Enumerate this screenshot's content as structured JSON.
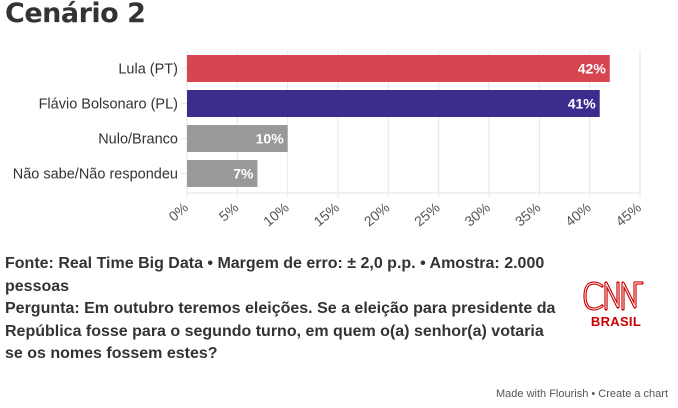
{
  "header": {
    "title": "Cenário 2"
  },
  "chart_data": {
    "type": "bar",
    "orientation": "horizontal",
    "title": "Cenário 2",
    "categories": [
      "Lula (PT)",
      "Flávio Bolsonaro (PL)",
      "Nulo/Branco",
      "Não sabe/Não respondeu"
    ],
    "values": [
      42,
      41,
      10,
      7
    ],
    "value_labels": [
      "42%",
      "41%",
      "10%",
      "7%"
    ],
    "colors": [
      "#d64550",
      "#3b2c8e",
      "#999999",
      "#999999"
    ],
    "xlim": [
      0,
      45
    ],
    "xticks": [
      0,
      5,
      10,
      15,
      20,
      25,
      30,
      35,
      40,
      45
    ],
    "xtick_labels": [
      "0%",
      "5%",
      "10%",
      "15%",
      "20%",
      "25%",
      "30%",
      "35%",
      "40%",
      "45%"
    ],
    "grid": true,
    "xlabel": "",
    "ylabel": ""
  },
  "footer": {
    "source_line": "Fonte: Real Time Big Data • Margem de erro: ± 2,0 p.p. • Amostra: 2.000 pessoas",
    "question_line": "Pergunta: Em outubro teremos eleições. Se a eleição para presidente da República fosse para o segundo turno, em quem o(a) senhor(a) votaria se os nomes fossem estes?"
  },
  "logo": {
    "name": "CNN",
    "sub": "BRASIL",
    "color": "#cc0000"
  },
  "credit": {
    "made_with": "Made with Flourish",
    "separator": " • ",
    "create": "Create a chart"
  }
}
